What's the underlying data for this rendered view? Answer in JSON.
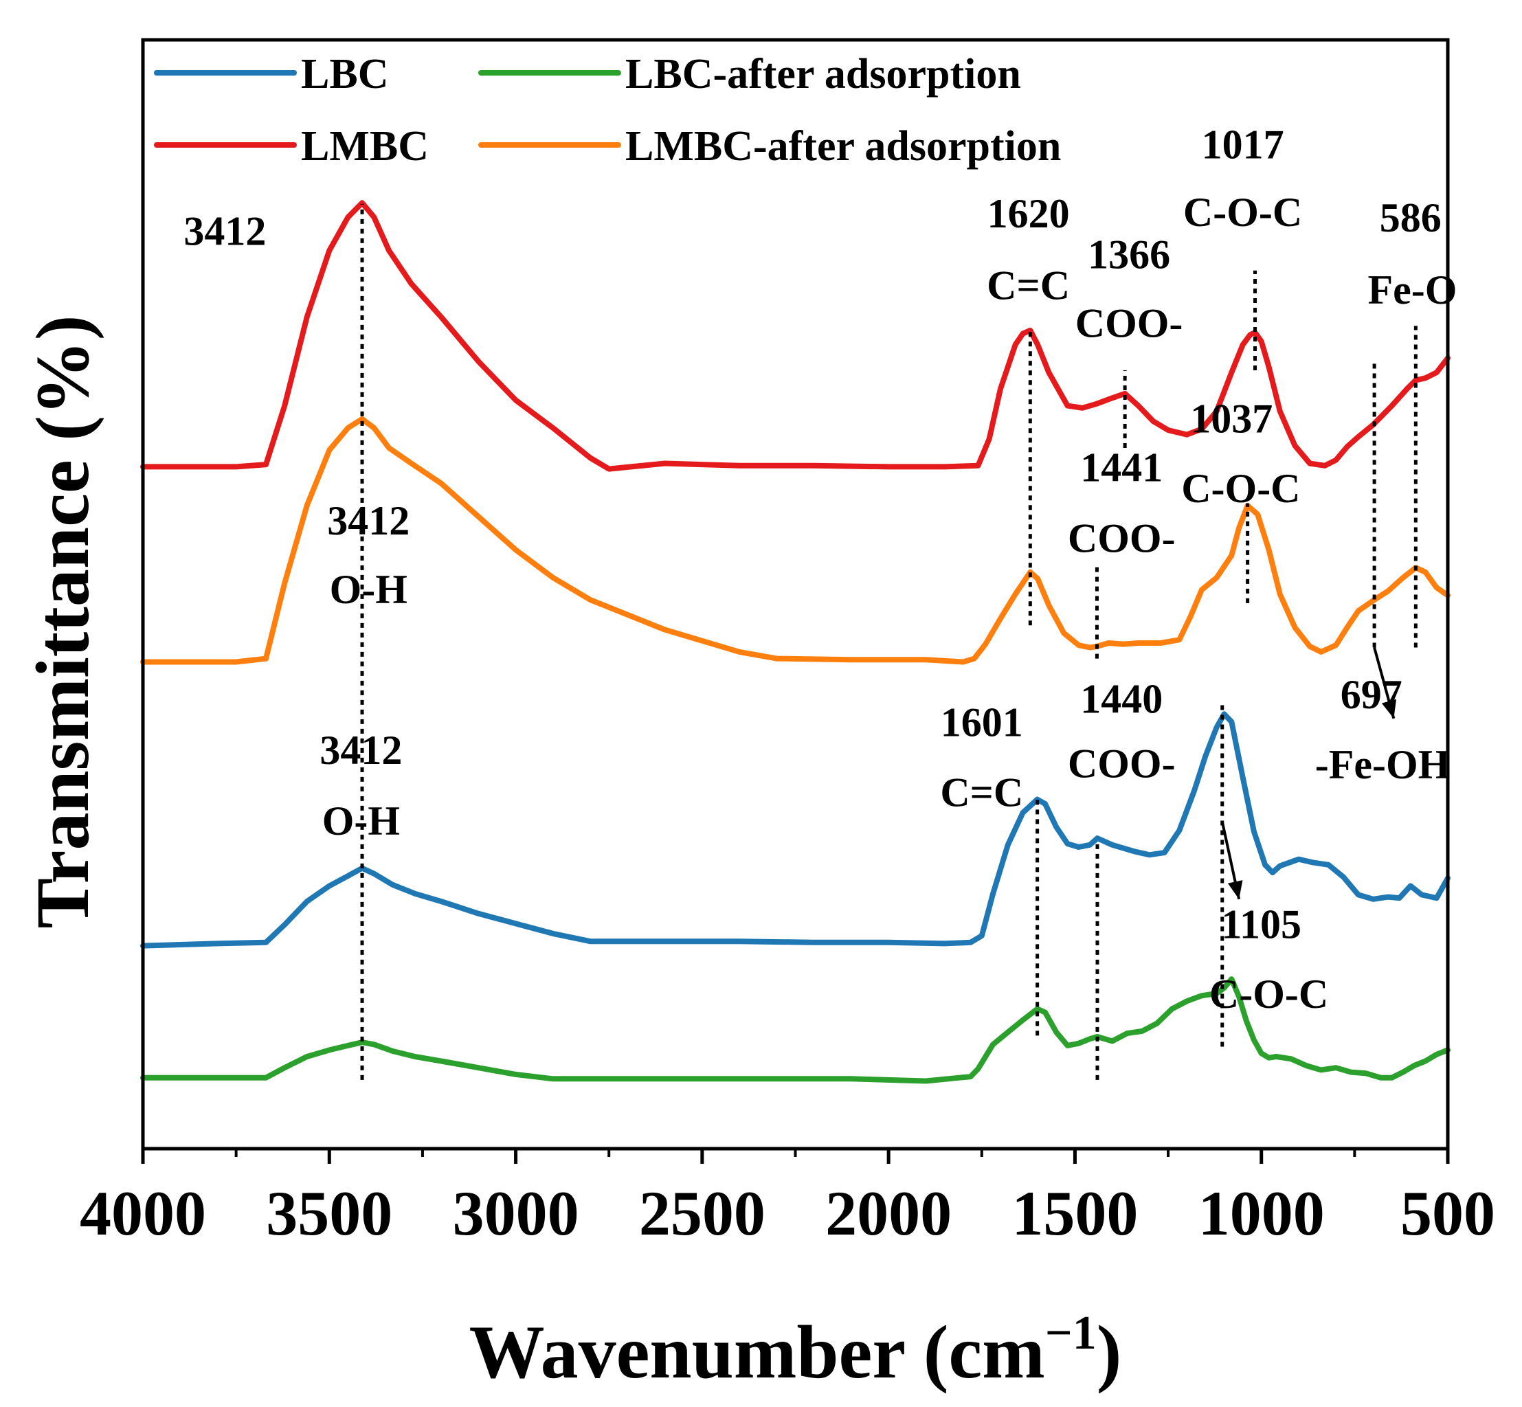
{
  "chart_data": {
    "type": "line",
    "title": "",
    "xlabel": "Wavenumber (cm",
    "xlabel_sup": "−1",
    "xlabel_close": ")",
    "ylabel": "Transmittance (%)",
    "xlim": [
      4000,
      500
    ],
    "x_reversed": true,
    "ylim": [
      0,
      100
    ],
    "x_ticks": [
      4000,
      3500,
      3000,
      2500,
      2000,
      1500,
      1000,
      500
    ],
    "x_tick_labels": [
      "4000",
      "3500",
      "3000",
      "2500",
      "2000",
      "1500",
      "1000",
      "500"
    ],
    "y_ticks_shown": false,
    "grid": false,
    "legend_position": "top-left",
    "legend_layout": [
      [
        "LBC",
        "LBC-after adsorption"
      ],
      [
        "LMBC",
        "LMBC-after adsorption"
      ]
    ],
    "series": [
      {
        "name": "LMBC",
        "color": "#e41a1c",
        "x": [
          4000,
          3750,
          3670,
          3620,
          3560,
          3500,
          3450,
          3412,
          3380,
          3340,
          3280,
          3200,
          3100,
          3000,
          2900,
          2800,
          2750,
          2600,
          2400,
          2200,
          2000,
          1850,
          1760,
          1730,
          1700,
          1660,
          1640,
          1620,
          1600,
          1570,
          1520,
          1480,
          1440,
          1400,
          1366,
          1330,
          1290,
          1250,
          1200,
          1160,
          1120,
          1080,
          1050,
          1030,
          1017,
          1000,
          980,
          950,
          910,
          870,
          830,
          800,
          770,
          740,
          700,
          650,
          610,
          586,
          560,
          530,
          500
        ],
        "y": [
          61.5,
          61.5,
          61.7,
          67,
          75,
          81,
          84,
          85.3,
          84,
          81,
          78,
          75,
          71,
          67.5,
          65,
          62.3,
          61.3,
          61.8,
          61.6,
          61.6,
          61.5,
          61.5,
          61.6,
          64,
          68.5,
          72.5,
          73.5,
          73.8,
          72.5,
          70,
          67,
          66.8,
          67.2,
          67.7,
          68.1,
          67,
          65.6,
          64.8,
          64.4,
          64.9,
          66.5,
          70,
          72.5,
          73.4,
          73.6,
          72.8,
          70.5,
          66.5,
          63.4,
          61.8,
          61.6,
          62.1,
          63.3,
          64.2,
          65.3,
          67,
          68.5,
          69.3,
          69.5,
          70,
          71.3
        ]
      },
      {
        "name": "LMBC-after adsorption",
        "color": "#ff7f0e",
        "x": [
          4000,
          3750,
          3670,
          3620,
          3560,
          3500,
          3450,
          3412,
          3380,
          3340,
          3280,
          3200,
          3100,
          3000,
          2900,
          2800,
          2600,
          2400,
          2300,
          2100,
          1900,
          1800,
          1770,
          1740,
          1700,
          1660,
          1620,
          1600,
          1570,
          1530,
          1490,
          1460,
          1441,
          1410,
          1370,
          1330,
          1270,
          1220,
          1190,
          1160,
          1120,
          1080,
          1060,
          1037,
          1010,
          980,
          950,
          910,
          870,
          840,
          800,
          770,
          740,
          697,
          660,
          620,
          586,
          560,
          530,
          500
        ],
        "y": [
          43.9,
          43.9,
          44.2,
          51,
          58,
          63,
          65,
          65.8,
          65,
          63.2,
          61.8,
          60,
          57,
          54,
          51.5,
          49.5,
          46.8,
          44.8,
          44.2,
          44.1,
          44.1,
          43.9,
          44.2,
          45.5,
          47.8,
          50,
          52,
          51.4,
          49,
          46.5,
          45.4,
          45.2,
          45.3,
          45.6,
          45.5,
          45.6,
          45.6,
          45.9,
          48,
          50.4,
          51.5,
          53.5,
          56,
          58,
          57.2,
          54,
          50,
          47,
          45.3,
          44.8,
          45.4,
          47,
          48.5,
          49.5,
          50.3,
          51.5,
          52.4,
          52,
          50.6,
          49.9
        ]
      },
      {
        "name": "LBC",
        "color": "#1f77b4",
        "x": [
          4000,
          3800,
          3670,
          3620,
          3560,
          3500,
          3450,
          3412,
          3380,
          3330,
          3270,
          3200,
          3100,
          3000,
          2900,
          2800,
          2600,
          2400,
          2200,
          2000,
          1850,
          1780,
          1750,
          1720,
          1680,
          1640,
          1601,
          1580,
          1550,
          1520,
          1490,
          1460,
          1440,
          1400,
          1340,
          1300,
          1260,
          1220,
          1180,
          1150,
          1120,
          1100,
          1080,
          1050,
          1020,
          990,
          970,
          950,
          900,
          860,
          820,
          780,
          740,
          700,
          660,
          630,
          600,
          570,
          530,
          500
        ],
        "y": [
          18.3,
          18.5,
          18.6,
          20.2,
          22.3,
          23.7,
          24.6,
          25.3,
          24.8,
          23.8,
          23,
          22.3,
          21.2,
          20.3,
          19.4,
          18.7,
          18.7,
          18.7,
          18.6,
          18.6,
          18.5,
          18.6,
          19.2,
          23,
          27.4,
          30.3,
          31.5,
          31.1,
          29,
          27.5,
          27.2,
          27.4,
          28,
          27.4,
          26.8,
          26.5,
          26.7,
          28.7,
          32.3,
          35.4,
          38,
          39.2,
          38.5,
          33.5,
          28.6,
          25.6,
          24.9,
          25.5,
          26.1,
          25.8,
          25.6,
          24.5,
          22.9,
          22.5,
          22.7,
          22.6,
          23.7,
          22.9,
          22.6,
          24.4
        ]
      },
      {
        "name": "LBC-after adsorption",
        "color": "#2ca02c",
        "x": [
          4000,
          3800,
          3670,
          3620,
          3560,
          3500,
          3450,
          3412,
          3380,
          3330,
          3270,
          3200,
          3100,
          3000,
          2900,
          2700,
          2500,
          2300,
          2100,
          1900,
          1780,
          1760,
          1720,
          1680,
          1640,
          1601,
          1580,
          1550,
          1520,
          1490,
          1460,
          1440,
          1400,
          1360,
          1320,
          1280,
          1240,
          1200,
          1160,
          1120,
          1100,
          1080,
          1060,
          1040,
          1020,
          1000,
          980,
          960,
          920,
          880,
          840,
          800,
          760,
          720,
          680,
          650,
          620,
          590,
          560,
          530,
          500
        ],
        "y": [
          6.4,
          6.4,
          6.4,
          7.3,
          8.3,
          8.9,
          9.3,
          9.6,
          9.4,
          8.8,
          8.3,
          7.9,
          7.3,
          6.7,
          6.3,
          6.3,
          6.3,
          6.3,
          6.3,
          6.1,
          6.5,
          7.2,
          9.4,
          10.5,
          11.6,
          12.6,
          12.3,
          10.5,
          9.3,
          9.5,
          9.9,
          10.1,
          9.7,
          10.4,
          10.6,
          11.3,
          12.6,
          13.3,
          13.8,
          14,
          14.5,
          15.3,
          13.7,
          11.5,
          9.8,
          8.6,
          8.2,
          8.3,
          8.1,
          7.5,
          7.1,
          7.3,
          6.9,
          6.8,
          6.4,
          6.4,
          6.9,
          7.5,
          7.9,
          8.5,
          8.9
        ]
      }
    ],
    "reference_lines": [
      {
        "x": 3412,
        "y_from": 6.2,
        "y_to": 85.2
      },
      {
        "x": 1620,
        "y_from": 47.2,
        "y_to": 73.8
      },
      {
        "x": 1601,
        "y_from": 10.2,
        "y_to": 31.8
      },
      {
        "x": 1441,
        "y_from": 44.2,
        "y_to": 52.8
      },
      {
        "x": 1440,
        "y_from": 6.2,
        "y_to": 27.8
      },
      {
        "x": 1366,
        "y_from": 63.2,
        "y_to": 70.2
      },
      {
        "x": 1105,
        "y_from": 9.2,
        "y_to": 40.2
      },
      {
        "x": 1037,
        "y_from": 49.2,
        "y_to": 58.2
      },
      {
        "x": 1017,
        "y_from": 70.2,
        "y_to": 79.2
      },
      {
        "x": 697,
        "y_from": 45.2,
        "y_to": 71.2
      },
      {
        "x": 586,
        "y_from": 45.2,
        "y_to": 74.2
      }
    ],
    "arrows": [
      {
        "x1": 1105,
        "y1": 29.5,
        "x2": 1060,
        "y2": 22.5
      },
      {
        "x1": 697,
        "y1": 45.2,
        "x2": 645,
        "y2": 38.8
      }
    ],
    "annotations": [
      {
        "text": "3412",
        "x": 3780,
        "y": 81.5
      },
      {
        "text": "3412",
        "x": 3395,
        "y": 55.4
      },
      {
        "text": "O-H",
        "x": 3395,
        "y": 49.2
      },
      {
        "text": "3412",
        "x": 3415,
        "y": 34.7
      },
      {
        "text": "O-H",
        "x": 3415,
        "y": 28.3
      },
      {
        "text": "1620",
        "x": 1625,
        "y": 83.1
      },
      {
        "text": "C=C",
        "x": 1625,
        "y": 76.6
      },
      {
        "text": "1366",
        "x": 1355,
        "y": 79.4
      },
      {
        "text": "COO-",
        "x": 1355,
        "y": 73.2
      },
      {
        "text": "1441",
        "x": 1375,
        "y": 60.2
      },
      {
        "text": "COO-",
        "x": 1375,
        "y": 53.8
      },
      {
        "text": "1440",
        "x": 1375,
        "y": 39.3
      },
      {
        "text": "COO-",
        "x": 1375,
        "y": 33.5
      },
      {
        "text": "1601",
        "x": 1750,
        "y": 37.2
      },
      {
        "text": "C=C",
        "x": 1750,
        "y": 30.9
      },
      {
        "text": "1017",
        "x": 1050,
        "y": 89.3
      },
      {
        "text": "C-O-C",
        "x": 1050,
        "y": 83.2
      },
      {
        "text": "586",
        "x": 600,
        "y": 82.7
      },
      {
        "text": "Fe-O",
        "x": 595,
        "y": 76.2
      },
      {
        "text": "1037",
        "x": 1080,
        "y": 64.6
      },
      {
        "text": "C-O-C",
        "x": 1055,
        "y": 58.3
      },
      {
        "text": "697",
        "x": 705,
        "y": 39.7
      },
      {
        "text": "-Fe-OH",
        "x": 675,
        "y": 33.4
      },
      {
        "text": "1105",
        "x": 1000,
        "y": 19.0
      },
      {
        "text": "C-O-C",
        "x": 980,
        "y": 12.7
      }
    ]
  }
}
